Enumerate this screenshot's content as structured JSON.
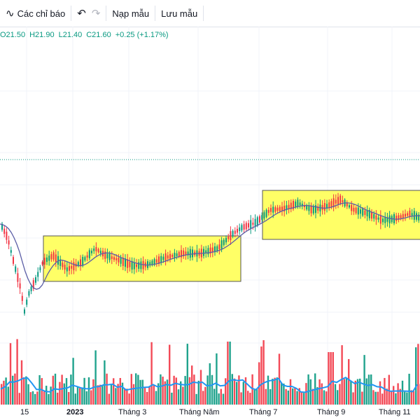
{
  "toolbar": {
    "indicators_label": "Các chỉ báo",
    "templates_label": "Nạp mẫu",
    "save_label": "Lưu mẫu",
    "undo_icon": "undo-icon",
    "redo_icon": "redo-icon",
    "indicators_icon": "indicators-icon"
  },
  "ohlc": {
    "open": "O21.50",
    "high": "H21.90",
    "low": "L21.40",
    "close": "C21.60",
    "change": "+0.25 (+1.17%)"
  },
  "colors": {
    "up": "#089981",
    "down": "#f23645",
    "ma": "#5b5ea6",
    "volume_ma": "#2196f3",
    "highlight_fill": "#ffff66",
    "highlight_border": "#555555",
    "dotted_line": "#089981"
  },
  "x_axis": {
    "labels": [
      "15",
      "2023",
      "Tháng 3",
      "Tháng Năm",
      "Tháng 7",
      "Tháng 9",
      "Tháng 11"
    ]
  },
  "chart_data": {
    "type": "candlestick",
    "title": "",
    "xlabel": "",
    "ylabel": "",
    "grid": true,
    "price_note": "candles with moving average line, two highlighted consolidation zones, volume bars with volume moving average"
  }
}
